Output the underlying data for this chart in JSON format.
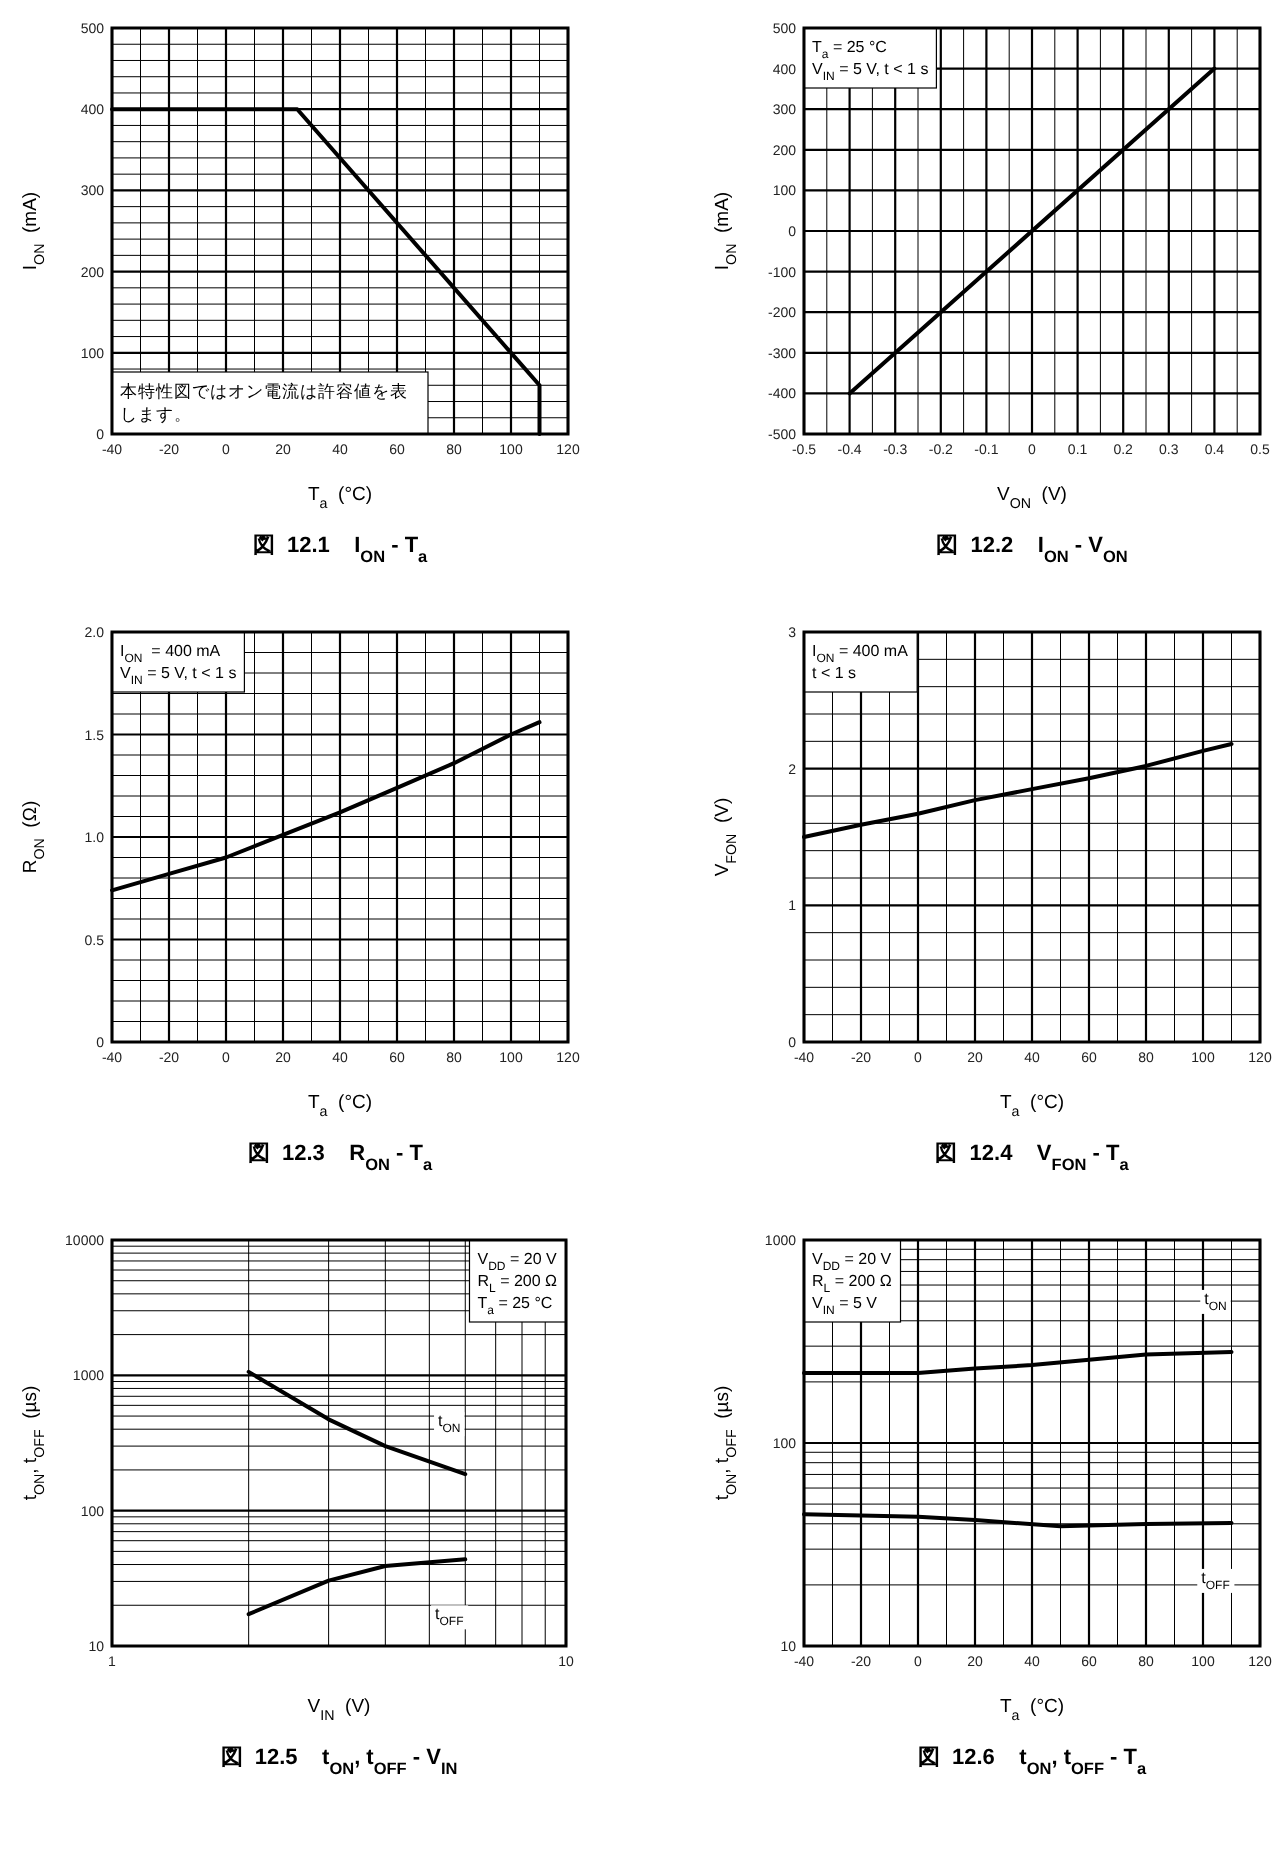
{
  "chart_data": [
    {
      "type": "line",
      "title": "図  12.1    I$_{ON}$ - T$_{a}$",
      "xlabel": "T$_{a}$  (°C)",
      "ylabel": "I$_{ON}$  (mA)",
      "xlim": [
        -40,
        120
      ],
      "ylim": [
        0,
        500
      ],
      "xticks": [
        -40,
        {
          "value": -30,
          "label": null
        },
        -20,
        {
          "value": -10,
          "label": null
        },
        0,
        {
          "value": 10,
          "label": null
        },
        20,
        {
          "value": 30,
          "label": null
        },
        40,
        {
          "value": 50,
          "label": null
        },
        60,
        {
          "value": 70,
          "label": null
        },
        80,
        {
          "value": 90,
          "label": null
        },
        100,
        {
          "value": 110,
          "label": null
        },
        120
      ],
      "yticks": [
        0,
        {
          "value": 20,
          "label": null
        },
        {
          "value": 40,
          "label": null
        },
        {
          "value": 60,
          "label": null
        },
        {
          "value": 80,
          "label": null
        },
        100,
        {
          "value": 120,
          "label": null
        },
        {
          "value": 140,
          "label": null
        },
        {
          "value": 160,
          "label": null
        },
        {
          "value": 180,
          "label": null
        },
        200,
        {
          "value": 220,
          "label": null
        },
        {
          "value": 240,
          "label": null
        },
        {
          "value": 260,
          "label": null
        },
        {
          "value": 280,
          "label": null
        },
        300,
        {
          "value": 320,
          "label": null
        },
        {
          "value": 340,
          "label": null
        },
        {
          "value": 360,
          "label": null
        },
        {
          "value": 380,
          "label": null
        },
        400,
        {
          "value": 420,
          "label": null
        },
        {
          "value": 440,
          "label": null
        },
        {
          "value": 460,
          "label": null
        },
        {
          "value": 480,
          "label": null
        },
        500
      ],
      "grid": true,
      "legend": false,
      "marker": "none",
      "line_style": "solid",
      "series": [
        {
          "color": "#000000",
          "x": [
            -40,
            25,
            110,
            110
          ],
          "values": [
            400,
            400,
            60,
            0
          ]
        }
      ],
      "annotations": [
        "本特性図ではオン電流は許容値を表します。"
      ]
    },
    {
      "type": "line",
      "title": "図  12.2    I$_{ON}$ - V$_{ON}$",
      "xlabel": "V$_{ON}$  (V)",
      "ylabel": "I$_{ON}$  (mA)",
      "xlim": [
        -0.5,
        0.5
      ],
      "ylim": [
        -500,
        500
      ],
      "xticks": [
        -0.5,
        {
          "value": -0.45,
          "label": null
        },
        -0.4,
        {
          "value": -0.35,
          "label": null
        },
        -0.3,
        {
          "value": -0.25,
          "label": null
        },
        -0.2,
        {
          "value": -0.15,
          "label": null
        },
        -0.1,
        {
          "value": -0.05,
          "label": null
        },
        0,
        {
          "value": 0.05,
          "label": null
        },
        0.1,
        {
          "value": 0.15,
          "label": null
        },
        0.2,
        {
          "value": 0.25,
          "label": null
        },
        0.3,
        {
          "value": 0.35,
          "label": null
        },
        0.4,
        {
          "value": 0.45,
          "label": null
        },
        0.5
      ],
      "yticks": [
        -500,
        -400,
        -300,
        -200,
        -100,
        0,
        100,
        200,
        300,
        400,
        500
      ],
      "grid": true,
      "legend": false,
      "marker": "none",
      "line_style": "solid",
      "series": [
        {
          "color": "#000000",
          "x": [
            -0.4,
            0.4
          ],
          "values": [
            -400,
            400
          ]
        }
      ],
      "annotations": [
        "T$_{a}$ = 25 °C",
        "V$_{IN}$ = 5 V, t < 1 s"
      ]
    },
    {
      "type": "line",
      "title": "図  12.3    R$_{ON}$ - T$_{a}$",
      "xlabel": "T$_{a}$  (°C)",
      "ylabel": "R$_{ON}$  (Ω)",
      "xlim": [
        -40,
        120
      ],
      "ylim": [
        0,
        2.0
      ],
      "xticks": [
        -40,
        {
          "value": -30,
          "label": null
        },
        -20,
        {
          "value": -10,
          "label": null
        },
        0,
        {
          "value": 10,
          "label": null
        },
        20,
        {
          "value": 30,
          "label": null
        },
        40,
        {
          "value": 50,
          "label": null
        },
        60,
        {
          "value": 70,
          "label": null
        },
        80,
        {
          "value": 90,
          "label": null
        },
        100,
        {
          "value": 110,
          "label": null
        },
        120
      ],
      "yticks": [
        0,
        {
          "value": 0.1,
          "label": null
        },
        {
          "value": 0.2,
          "label": null
        },
        {
          "value": 0.3,
          "label": null
        },
        {
          "value": 0.4,
          "label": null
        },
        0.5,
        {
          "value": 0.6,
          "label": null
        },
        {
          "value": 0.7,
          "label": null
        },
        {
          "value": 0.8,
          "label": null
        },
        {
          "value": 0.9,
          "label": null
        },
        {
          "value": 1.0,
          "label": "1.0"
        },
        {
          "value": 1.1,
          "label": null
        },
        {
          "value": 1.2,
          "label": null
        },
        {
          "value": 1.3,
          "label": null
        },
        {
          "value": 1.4,
          "label": null
        },
        1.5,
        {
          "value": 1.6,
          "label": null
        },
        {
          "value": 1.7,
          "label": null
        },
        {
          "value": 1.8,
          "label": null
        },
        {
          "value": 1.9,
          "label": null
        },
        {
          "value": 2.0,
          "label": "2.0"
        }
      ],
      "grid": true,
      "legend": false,
      "marker": "none",
      "line_style": "solid",
      "series": [
        {
          "color": "#000000",
          "x": [
            -40,
            -20,
            0,
            20,
            40,
            60,
            80,
            100,
            110
          ],
          "values": [
            0.74,
            0.82,
            0.9,
            1.01,
            1.12,
            1.24,
            1.36,
            1.5,
            1.56
          ]
        }
      ],
      "annotations": [
        "I$_{ON}$  = 400 mA",
        "V$_{IN}$ = 5 V, t < 1 s"
      ]
    },
    {
      "type": "line",
      "title": "図  12.4    V$_{FON}$ - T$_{a}$",
      "xlabel": "T$_{a}$  (°C)",
      "ylabel": "V$_{FON}$  (V)",
      "xlim": [
        -40,
        120
      ],
      "ylim": [
        0,
        3
      ],
      "xticks": [
        -40,
        {
          "value": -30,
          "label": null
        },
        -20,
        {
          "value": -10,
          "label": null
        },
        0,
        {
          "value": 10,
          "label": null
        },
        20,
        {
          "value": 30,
          "label": null
        },
        40,
        {
          "value": 50,
          "label": null
        },
        60,
        {
          "value": 70,
          "label": null
        },
        80,
        {
          "value": 90,
          "label": null
        },
        100,
        {
          "value": 110,
          "label": null
        },
        120
      ],
      "yticks": [
        0,
        {
          "value": 0.2,
          "label": null
        },
        {
          "value": 0.4,
          "label": null
        },
        {
          "value": 0.6,
          "label": null
        },
        {
          "value": 0.8,
          "label": null
        },
        1,
        {
          "value": 1.2,
          "label": null
        },
        {
          "value": 1.4,
          "label": null
        },
        {
          "value": 1.6,
          "label": null
        },
        {
          "value": 1.8,
          "label": null
        },
        2,
        {
          "value": 2.2,
          "label": null
        },
        {
          "value": 2.4,
          "label": null
        },
        {
          "value": 2.6,
          "label": null
        },
        {
          "value": 2.8,
          "label": null
        },
        3
      ],
      "grid": true,
      "legend": false,
      "marker": "none",
      "line_style": "solid",
      "series": [
        {
          "color": "#000000",
          "x": [
            -40,
            -20,
            0,
            20,
            40,
            60,
            80,
            100,
            110
          ],
          "values": [
            1.5,
            1.59,
            1.67,
            1.77,
            1.85,
            1.93,
            2.02,
            2.13,
            2.18
          ]
        }
      ],
      "annotations": [
        "I$_{ON}$ = 400 mA",
        "t < 1 s"
      ]
    },
    {
      "type": "line",
      "title": "図  12.5    t$_{ON}$, t$_{OFF}$ - V$_{IN}$",
      "xlabel": "V$_{IN}$  (V)",
      "ylabel": "t$_{ON}$, t$_{OFF}$  (µs)",
      "xlim": [
        1,
        10
      ],
      "ylim": [
        10,
        10000
      ],
      "log": "xy",
      "xticks": [
        1,
        {
          "value": 2,
          "label": null
        },
        {
          "value": 3,
          "label": null
        },
        {
          "value": 4,
          "label": null
        },
        {
          "value": 5,
          "label": null
        },
        {
          "value": 6,
          "label": null
        },
        {
          "value": 7,
          "label": null
        },
        {
          "value": 8,
          "label": null
        },
        {
          "value": 9,
          "label": null
        },
        10
      ],
      "yticks": [
        10,
        {
          "value": 20,
          "label": null
        },
        {
          "value": 30,
          "label": null
        },
        {
          "value": 40,
          "label": null
        },
        {
          "value": 50,
          "label": null
        },
        {
          "value": 60,
          "label": null
        },
        {
          "value": 70,
          "label": null
        },
        {
          "value": 80,
          "label": null
        },
        {
          "value": 90,
          "label": null
        },
        100,
        {
          "value": 200,
          "label": null
        },
        {
          "value": 300,
          "label": null
        },
        {
          "value": 400,
          "label": null
        },
        {
          "value": 500,
          "label": null
        },
        {
          "value": 600,
          "label": null
        },
        {
          "value": 700,
          "label": null
        },
        {
          "value": 800,
          "label": null
        },
        {
          "value": 900,
          "label": null
        },
        1000,
        {
          "value": 2000,
          "label": null
        },
        {
          "value": 3000,
          "label": null
        },
        {
          "value": 4000,
          "label": null
        },
        {
          "value": 5000,
          "label": null
        },
        {
          "value": 6000,
          "label": null
        },
        {
          "value": 7000,
          "label": null
        },
        {
          "value": 8000,
          "label": null
        },
        {
          "value": 9000,
          "label": null
        },
        10000
      ],
      "grid": true,
      "legend": false,
      "marker": "none",
      "line_style": "solid",
      "series": [
        {
          "name": "t$_{ON}$",
          "color": "#000000",
          "x": [
            2,
            3,
            4,
            6
          ],
          "values": [
            1060,
            473,
            300,
            186
          ]
        },
        {
          "name": "t$_{OFF}$",
          "color": "#000000",
          "x": [
            2,
            3,
            4,
            6
          ],
          "values": [
            17.2,
            30.4,
            39,
            43.7
          ]
        }
      ],
      "annotations": [
        "V$_{DD}$ = 20 V",
        "R$_{L}$ = 200 Ω",
        "T$_{a}$ = 25 °C"
      ]
    },
    {
      "type": "line",
      "title": "図  12.6    t$_{ON}$, t$_{OFF}$ - T$_{a}$",
      "xlabel": "T$_{a}$  (°C)",
      "ylabel": "t$_{ON}$, t$_{OFF}$  (µs)",
      "xlim": [
        -40,
        120
      ],
      "ylim": [
        10,
        1000
      ],
      "log": "y",
      "xticks": [
        -40,
        {
          "value": -30,
          "label": null
        },
        -20,
        {
          "value": -10,
          "label": null
        },
        0,
        {
          "value": 10,
          "label": null
        },
        20,
        {
          "value": 30,
          "label": null
        },
        40,
        {
          "value": 50,
          "label": null
        },
        60,
        {
          "value": 70,
          "label": null
        },
        80,
        {
          "value": 90,
          "label": null
        },
        100,
        {
          "value": 110,
          "label": null
        },
        120
      ],
      "yticks": [
        10,
        {
          "value": 20,
          "label": null
        },
        {
          "value": 30,
          "label": null
        },
        {
          "value": 40,
          "label": null
        },
        {
          "value": 50,
          "label": null
        },
        {
          "value": 60,
          "label": null
        },
        {
          "value": 70,
          "label": null
        },
        {
          "value": 80,
          "label": null
        },
        {
          "value": 90,
          "label": null
        },
        100,
        {
          "value": 200,
          "label": null
        },
        {
          "value": 300,
          "label": null
        },
        {
          "value": 400,
          "label": null
        },
        {
          "value": 500,
          "label": null
        },
        {
          "value": 600,
          "label": null
        },
        {
          "value": 700,
          "label": null
        },
        {
          "value": 800,
          "label": null
        },
        {
          "value": 900,
          "label": null
        },
        1000
      ],
      "grid": true,
      "legend": false,
      "marker": "none",
      "line_style": "solid",
      "series": [
        {
          "name": "t$_{ON}$",
          "color": "#000000",
          "x": [
            -40,
            0,
            20,
            40,
            60,
            80,
            110
          ],
          "values": [
            221,
            221,
            233,
            242,
            257,
            273,
            281
          ]
        },
        {
          "name": "t$_{OFF}$",
          "color": "#000000",
          "x": [
            -40,
            0,
            20,
            50,
            80,
            110
          ],
          "values": [
            44.6,
            43.3,
            41.7,
            38.9,
            39.9,
            40.4
          ]
        }
      ],
      "annotations": [
        "V$_{DD}$ = 20 V",
        "R$_{L}$ = 200 Ω",
        "V$_{IN}$ = 5 V"
      ]
    }
  ]
}
